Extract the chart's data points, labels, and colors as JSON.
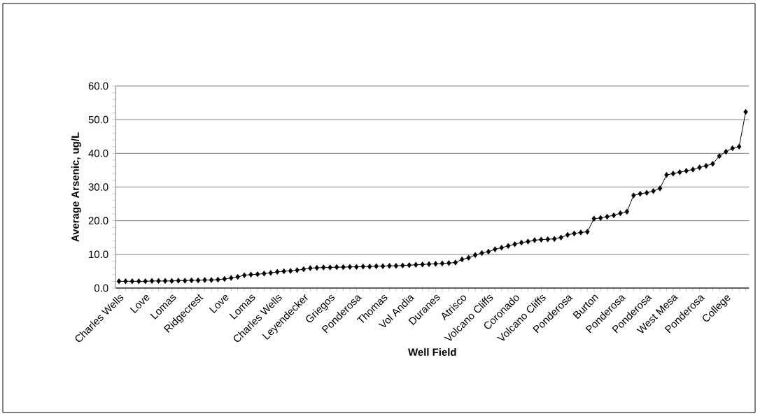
{
  "chart_data": {
    "type": "line",
    "xlabel": "Well Field",
    "ylabel": "Average Arsenic, ug/L",
    "categories": [
      "Charles Wells",
      null,
      null,
      null,
      "Love",
      null,
      null,
      null,
      "Lomas",
      null,
      null,
      null,
      "Ridgecrest",
      null,
      null,
      null,
      "Love",
      null,
      null,
      null,
      "Lomas",
      null,
      null,
      null,
      "Charles Wells",
      null,
      null,
      null,
      "Leyendecker",
      null,
      null,
      null,
      "Griegos",
      null,
      null,
      null,
      "Ponderosa",
      null,
      null,
      null,
      "Thomas",
      null,
      null,
      null,
      "Vol Andia",
      null,
      null,
      null,
      "Duranes",
      null,
      null,
      null,
      "Atrisco",
      null,
      null,
      null,
      "Volcano Cliffs",
      null,
      null,
      null,
      "Coronado",
      null,
      null,
      null,
      "Volcano Cliffs",
      null,
      null,
      null,
      "Ponderosa",
      null,
      null,
      null,
      "Burton",
      null,
      null,
      null,
      "Ponderosa",
      null,
      null,
      null,
      "Ponderosa",
      null,
      null,
      null,
      "West Mesa",
      null,
      null,
      null,
      "Ponderosa",
      null,
      null,
      null,
      "College",
      null,
      null,
      null
    ],
    "values": [
      2.0,
      2.0,
      2.0,
      2.0,
      2.0,
      2.1,
      2.1,
      2.1,
      2.1,
      2.2,
      2.2,
      2.3,
      2.3,
      2.4,
      2.4,
      2.5,
      2.7,
      3.0,
      3.3,
      3.8,
      4.0,
      4.1,
      4.3,
      4.5,
      4.8,
      5.0,
      5.1,
      5.3,
      5.6,
      5.9,
      6.0,
      6.1,
      6.1,
      6.2,
      6.2,
      6.3,
      6.3,
      6.4,
      6.4,
      6.5,
      6.5,
      6.6,
      6.6,
      6.7,
      6.8,
      6.9,
      7.0,
      7.1,
      7.2,
      7.3,
      7.4,
      7.6,
      8.5,
      9.0,
      9.8,
      10.4,
      10.8,
      11.5,
      12.0,
      12.5,
      13.0,
      13.5,
      13.8,
      14.2,
      14.4,
      14.5,
      14.6,
      15.0,
      15.8,
      16.2,
      16.5,
      16.7,
      20.6,
      20.8,
      21.2,
      21.6,
      22.2,
      22.7,
      27.5,
      28.0,
      28.3,
      28.8,
      29.6,
      33.6,
      34.0,
      34.4,
      34.8,
      35.2,
      35.8,
      36.3,
      36.9,
      39.2,
      40.5,
      41.5,
      42.0,
      52.3
    ],
    "color": "#000000",
    "marker": "diamond",
    "line_style": "solid",
    "grid": "y",
    "ylim": [
      0,
      60
    ],
    "yticks": [
      {
        "value": 0,
        "label": "0.0"
      },
      {
        "value": 10,
        "label": "10.0"
      },
      {
        "value": 20,
        "label": "20.0"
      },
      {
        "value": 30,
        "label": "30.0"
      },
      {
        "value": 40,
        "label": "40.0"
      },
      {
        "value": 50,
        "label": "50.0"
      },
      {
        "value": 60,
        "label": "60.0"
      }
    ]
  }
}
